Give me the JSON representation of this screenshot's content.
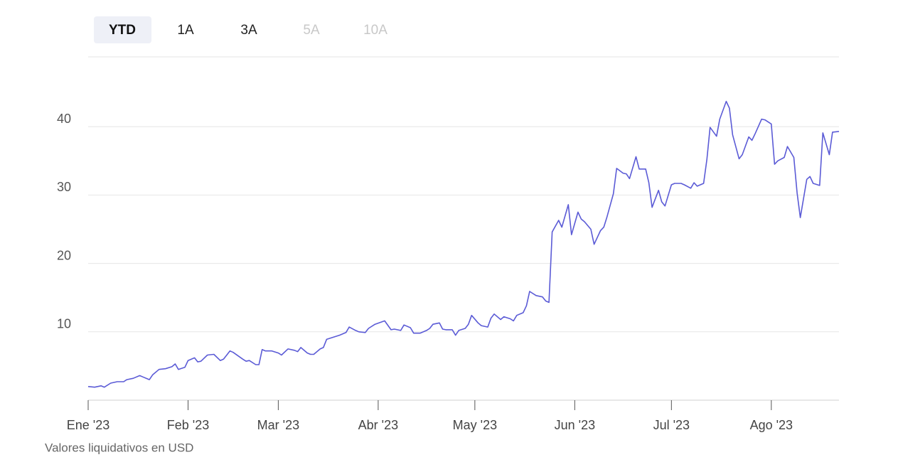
{
  "range_buttons": [
    "YTD",
    "1A",
    "3A",
    "5A",
    "10A"
  ],
  "chart_data": {
    "type": "line",
    "color": "#5b5bd6",
    "grid": true,
    "caption": "Valores liquidativos en USD",
    "xlim": [
      0,
      233
    ],
    "xticks": [
      {
        "value": 0,
        "label": "Ene '23"
      },
      {
        "value": 31,
        "label": "Feb '23"
      },
      {
        "value": 59,
        "label": "Mar '23"
      },
      {
        "value": 90,
        "label": "Abr '23"
      },
      {
        "value": 120,
        "label": "May '23"
      },
      {
        "value": 151,
        "label": "Jun '23"
      },
      {
        "value": 181,
        "label": "Jul '23"
      },
      {
        "value": 212,
        "label": "Ago '23"
      }
    ],
    "ylim": [
      0,
      50
    ],
    "yticks": [
      10,
      20,
      30,
      40
    ],
    "x": [
      0,
      2,
      4,
      5,
      7,
      9,
      11,
      12,
      14,
      16,
      17,
      19,
      20,
      22,
      24,
      26,
      27,
      28,
      30,
      31,
      33,
      34,
      35,
      37,
      39,
      41,
      42,
      44,
      45,
      48,
      49,
      50,
      52,
      53,
      54,
      55,
      57,
      59,
      60,
      62,
      64,
      65,
      66,
      68,
      69,
      70,
      72,
      73,
      74,
      76,
      78,
      80,
      81,
      83,
      84,
      86,
      87,
      89,
      92,
      94,
      95,
      97,
      98,
      100,
      101,
      103,
      105,
      106,
      107,
      109,
      110,
      111,
      113,
      114,
      115,
      117,
      118,
      119,
      121,
      122,
      124,
      125,
      126,
      128,
      129,
      131,
      132,
      133,
      135,
      136,
      137,
      139,
      141,
      142,
      143,
      144,
      146,
      147,
      149,
      150,
      152,
      153,
      154,
      156,
      157,
      159,
      160,
      161,
      163,
      164,
      166,
      167,
      168,
      170,
      171,
      173,
      174,
      175,
      177,
      178,
      179,
      181,
      182,
      184,
      185,
      187,
      188,
      189,
      191,
      192,
      193,
      195,
      196,
      198,
      199,
      200,
      202,
      203,
      205,
      206,
      207,
      209,
      210,
      212,
      213,
      214,
      216,
      217,
      219,
      220,
      221,
      223,
      224,
      225,
      227,
      228,
      230,
      231,
      233
    ],
    "values": [
      2.0,
      1.9,
      2.1,
      1.9,
      2.5,
      2.7,
      2.7,
      3.0,
      3.2,
      3.6,
      3.4,
      3.0,
      3.7,
      4.5,
      4.6,
      4.9,
      5.3,
      4.5,
      4.8,
      5.8,
      6.2,
      5.6,
      5.7,
      6.6,
      6.7,
      5.8,
      6.0,
      7.2,
      7.0,
      6.0,
      5.7,
      5.8,
      5.2,
      5.2,
      7.4,
      7.2,
      7.2,
      6.9,
      6.6,
      7.5,
      7.3,
      7.1,
      7.7,
      6.9,
      6.7,
      6.7,
      7.5,
      7.7,
      8.9,
      9.2,
      9.5,
      9.9,
      10.7,
      10.2,
      10.0,
      9.9,
      10.5,
      11.1,
      11.6,
      10.3,
      10.4,
      10.2,
      11.0,
      10.6,
      9.8,
      9.8,
      10.2,
      10.5,
      11.1,
      11.3,
      10.4,
      10.3,
      10.3,
      9.5,
      10.2,
      10.5,
      11.1,
      12.4,
      11.3,
      10.9,
      10.7,
      12.0,
      12.6,
      11.8,
      12.2,
      11.9,
      11.6,
      12.4,
      12.8,
      13.8,
      15.9,
      15.3,
      15.1,
      14.5,
      14.3,
      24.6,
      26.3,
      25.3,
      28.6,
      24.2,
      27.5,
      26.5,
      26.1,
      25.0,
      22.8,
      24.8,
      25.3,
      26.8,
      30.2,
      33.9,
      33.2,
      33.1,
      32.4,
      35.6,
      33.8,
      33.8,
      31.8,
      28.2,
      30.7,
      29.0,
      28.4,
      31.5,
      31.7,
      31.7,
      31.5,
      31.0,
      31.8,
      31.3,
      31.7,
      35.2,
      39.9,
      38.6,
      41.1,
      43.7,
      42.7,
      38.8,
      35.3,
      35.9,
      38.5,
      38.0,
      39.0,
      41.1,
      41.0,
      40.4,
      34.5,
      35.0,
      35.5,
      37.1,
      35.5,
      30.3,
      26.7,
      32.3,
      32.7,
      31.7,
      31.4,
      39.1,
      35.9,
      39.2,
      39.3
    ]
  }
}
